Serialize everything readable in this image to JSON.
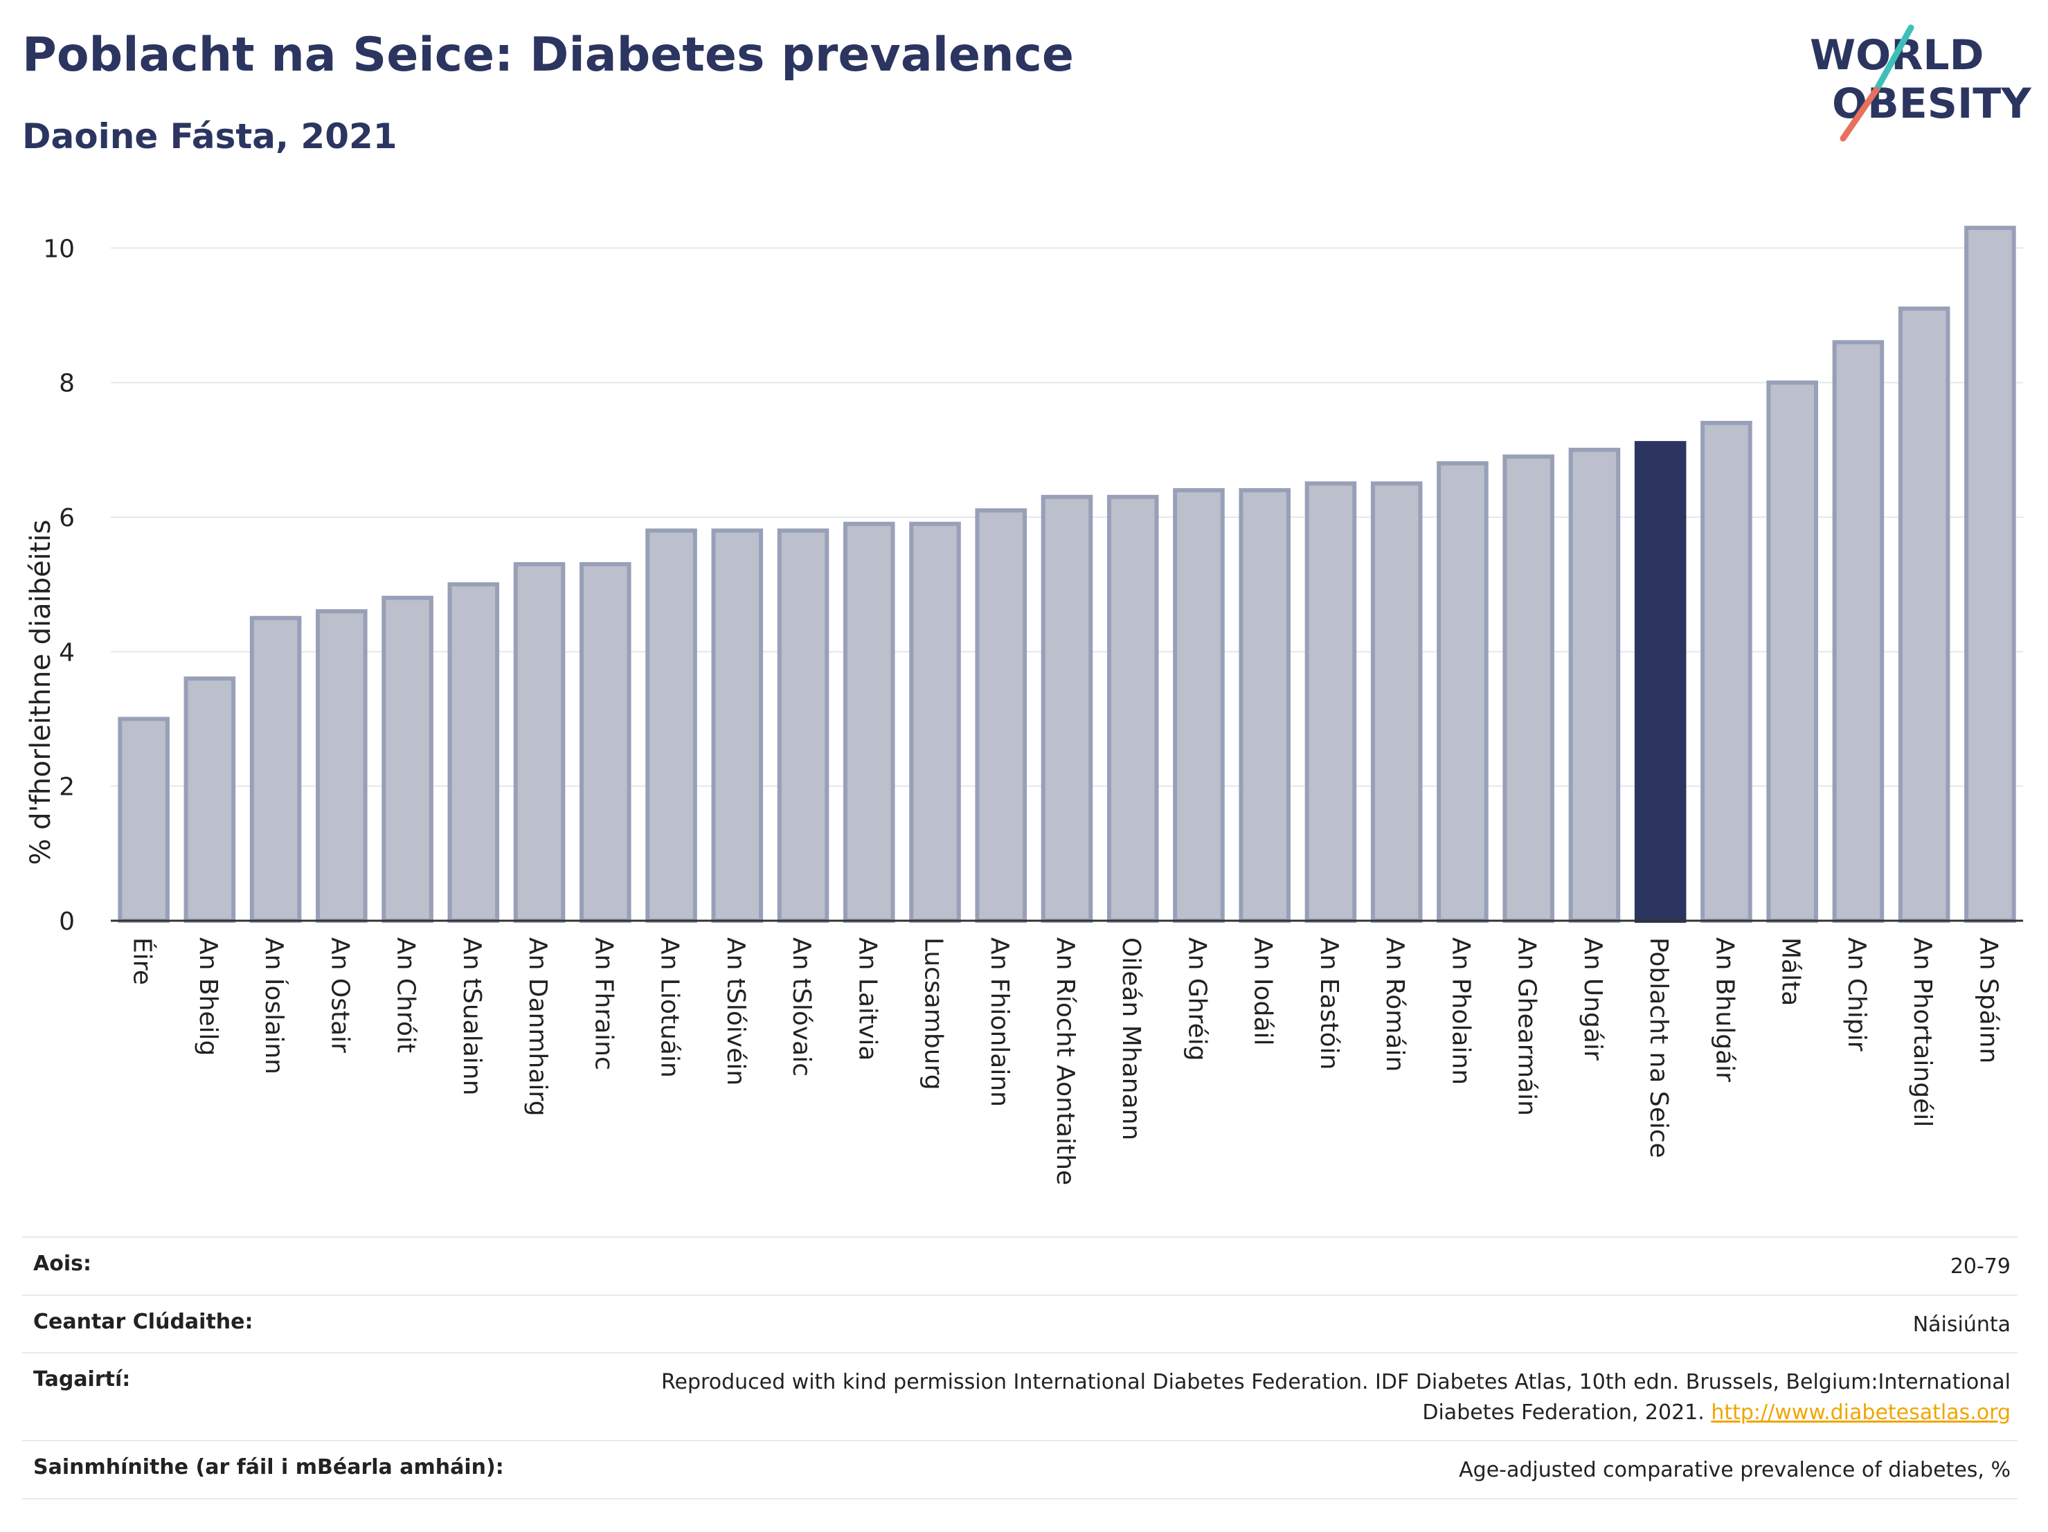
{
  "header": {
    "title": "Poblacht na Seice: Diabetes prevalence",
    "subtitle": "Daoine Fásta, 2021"
  },
  "logo": {
    "line1": "WORLD",
    "line2": "OBESITY"
  },
  "colors": {
    "bar": "#bcbfcc",
    "bar_stroke": "#98a0b8",
    "highlight": "#2b3560",
    "grid": "#e6e7ec",
    "axis": "#333333"
  },
  "chart_data": {
    "type": "bar",
    "ylabel": "% d'fhorleithne diaibéitis",
    "ylim": [
      0,
      10.6
    ],
    "yticks": [
      0,
      2,
      4,
      6,
      8,
      10
    ],
    "grid": true,
    "highlight": "Poblacht na Seice",
    "categories": [
      "Éire",
      "An Bheilg",
      "An Íoslainn",
      "An Ostair",
      "An Chróit",
      "An tSualainn",
      "An Danmhairg",
      "An Fhrainc",
      "An Liotuáin",
      "An tSlóivéin",
      "An tSlóvaic",
      "An Laitvia",
      "Lucsamburg",
      "An Fhionlainn",
      "An Ríocht Aontaithe",
      "Oileán Mhanann",
      "An Ghréig",
      "An Iodáil",
      "An Eastóin",
      "An Rómáin",
      "An Pholainn",
      "An Ghearmáin",
      "An Ungáir",
      "Poblacht na Seice",
      "An Bhulgáir",
      "Málta",
      "An Chipir",
      "An Phortaingéil",
      "An Spáinn"
    ],
    "values": [
      3.0,
      3.6,
      4.5,
      4.6,
      4.8,
      5.0,
      5.3,
      5.3,
      5.8,
      5.8,
      5.8,
      5.9,
      5.9,
      6.1,
      6.3,
      6.3,
      6.4,
      6.4,
      6.5,
      6.5,
      6.8,
      6.9,
      7.0,
      7.1,
      7.4,
      8.0,
      8.6,
      9.1,
      10.3
    ]
  },
  "meta": [
    {
      "key": "Aois:",
      "value": "20-79"
    },
    {
      "key": "Ceantar Clúdaithe:",
      "value": "Náisiúnta"
    },
    {
      "key": "Tagairtí:",
      "value": "Reproduced with kind permission International Diabetes Federation.  IDF Diabetes Atlas, 10th edn. Brussels, Belgium:International Diabetes Federation, 2021.",
      "link": "http://www.diabetesatlas.org"
    },
    {
      "key": "Sainmhínithe (ar fáil i mBéarla amháin):",
      "value": "Age-adjusted comparative prevalence of diabetes, %"
    }
  ]
}
